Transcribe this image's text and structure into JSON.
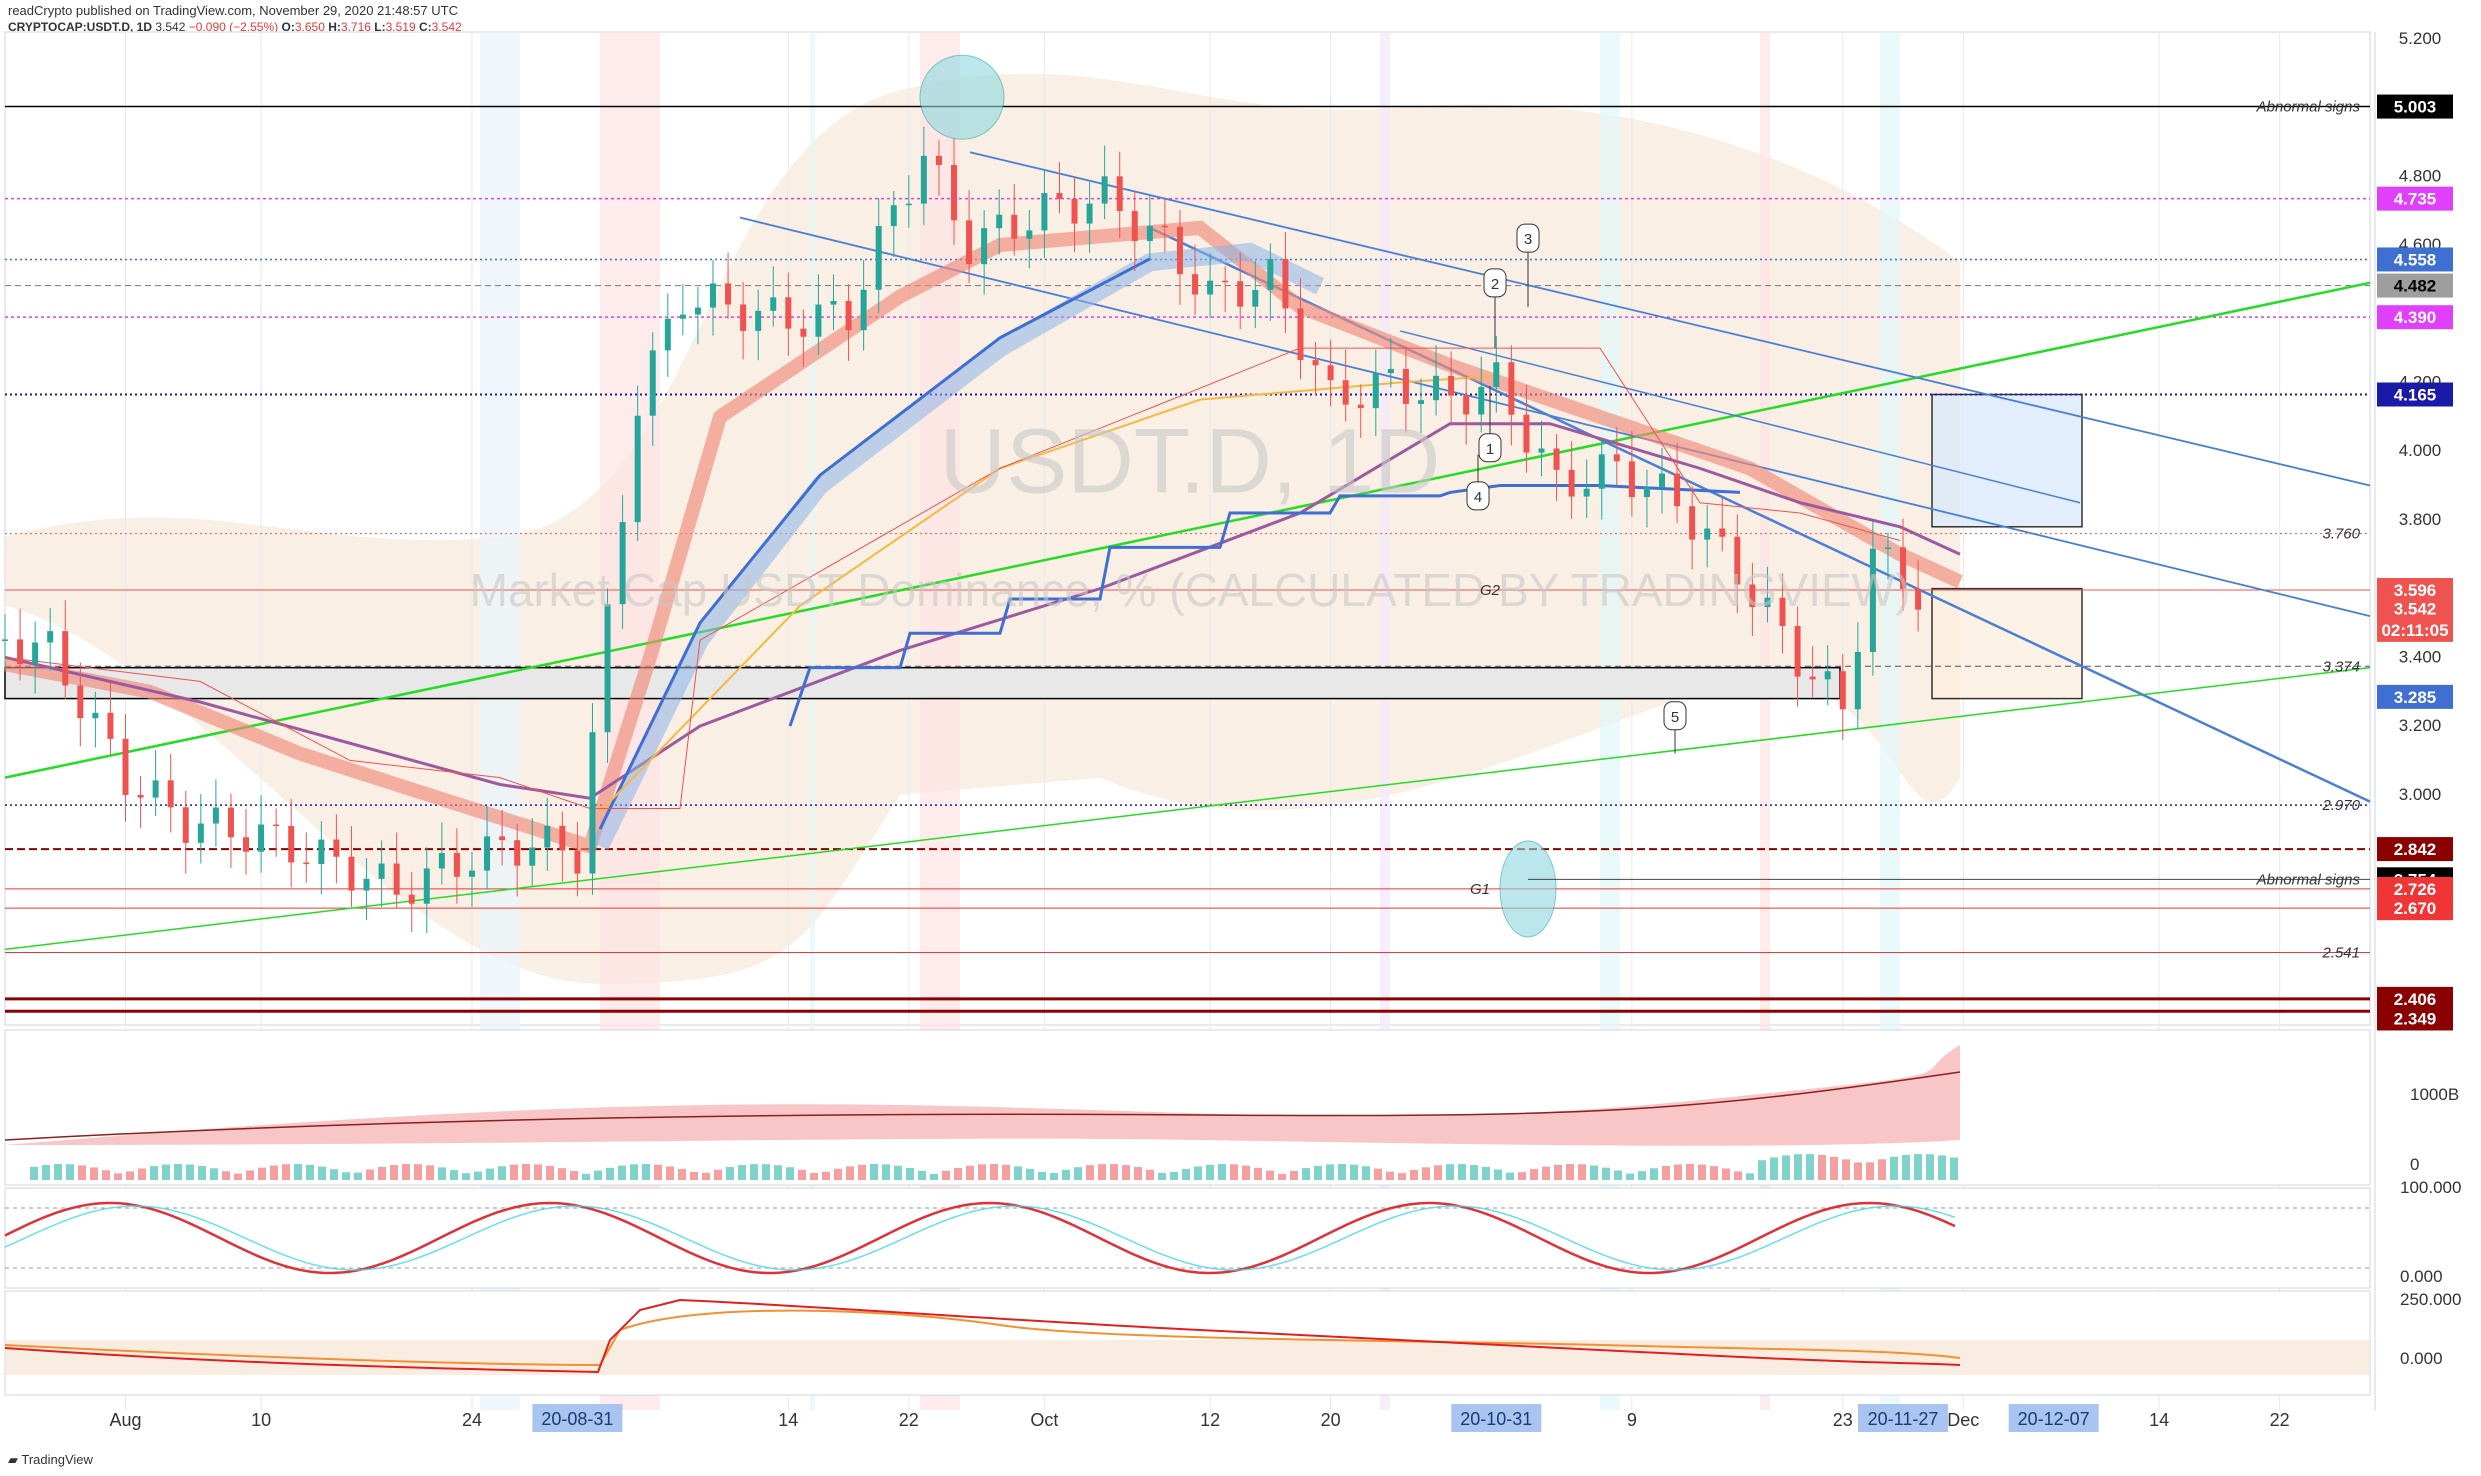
{
  "header": {
    "publisher_line": "readCrypto published on TradingView.com, November 29, 2020 21:48:57 UTC",
    "symbol": "CRYPTOCAP:USDT.D, 1D",
    "last": "3.542",
    "change": "−0.090 (−2.55%)",
    "open": "3.650",
    "high": "3.716",
    "low": "3.519",
    "close": "3.542"
  },
  "watermark": {
    "symbol": "USDT.D, 1D",
    "name": "Market Cap USDT Dominance, % (CALCULATED BY TRADINGVIEW)"
  },
  "footer_logo": "TradingView",
  "colors": {
    "up": "#26a69a",
    "down": "#ef5350",
    "green_line": "#22dd22",
    "blue_line": "#4a7fd6",
    "magenta": "#e040e0",
    "dark_red": "#8b0000",
    "purple": "#9c5aa0",
    "orange": "#f5b942"
  },
  "price_axis": {
    "ticks": [
      "5.200",
      "4.800",
      "4.600",
      "4.200",
      "4.000",
      "3.800",
      "3.600",
      "3.400",
      "3.200",
      "3.000"
    ],
    "labels": [
      {
        "value": 5.003,
        "text": "5.003",
        "bg": "#000000",
        "fg": "#ffffff"
      },
      {
        "value": 4.735,
        "text": "4.735",
        "bg": "#e040fb",
        "fg": "#ffffff"
      },
      {
        "value": 4.558,
        "text": "4.558",
        "bg": "#3f6fd1",
        "fg": "#ffffff"
      },
      {
        "value": 4.482,
        "text": "4.482",
        "bg": "#9e9e9e",
        "fg": "#000000"
      },
      {
        "value": 4.39,
        "text": "4.390",
        "bg": "#e040fb",
        "fg": "#ffffff"
      },
      {
        "value": 4.165,
        "text": "4.165",
        "bg": "#1a1aa8",
        "fg": "#ffffff"
      },
      {
        "value": 3.596,
        "text": "3.596",
        "bg": "#ef5350",
        "fg": "#ffffff"
      },
      {
        "value": 3.542,
        "text": "3.542",
        "bg": "#ef5350",
        "fg": "#ffffff"
      },
      {
        "value": 3.48,
        "text": "02:11:05",
        "bg": "#ef5350",
        "fg": "#ffffff"
      },
      {
        "value": 3.285,
        "text": "3.285",
        "bg": "#3f6fd1",
        "fg": "#ffffff"
      },
      {
        "value": 2.842,
        "text": "2.842",
        "bg": "#8b0000",
        "fg": "#ffffff"
      },
      {
        "value": 2.754,
        "text": "2.754",
        "bg": "#000000",
        "fg": "#ffffff"
      },
      {
        "value": 2.726,
        "text": "2.726",
        "bg": "#ef3535",
        "fg": "#ffffff"
      },
      {
        "value": 2.67,
        "text": "2.670",
        "bg": "#ef3535",
        "fg": "#ffffff"
      },
      {
        "value": 2.406,
        "text": "2.406",
        "bg": "#8b0000",
        "fg": "#ffffff"
      },
      {
        "value": 2.349,
        "text": "2.349",
        "bg": "#8b0000",
        "fg": "#ffffff"
      }
    ]
  },
  "time_axis": {
    "ticks": [
      "Aug",
      "10",
      "24",
      "14",
      "22",
      "Oct",
      "12",
      "20",
      "9",
      "23",
      "Dec",
      "14",
      "22"
    ],
    "highlights": [
      "20-08-31",
      "20-10-31",
      "20-11-27",
      "20-12-07"
    ]
  },
  "annotations": {
    "abnormal_top": "Abnormal signs",
    "abnormal_bottom": "Abnormal signs",
    "level_3760": "3.760",
    "level_3374": "3.374",
    "level_2970": "2.970",
    "level_2541": "2.541",
    "g1": "G1",
    "g2": "G2",
    "callouts": [
      "1",
      "2",
      "3",
      "4",
      "5"
    ]
  },
  "pane_volume": {
    "axis": [
      "1000B",
      "0"
    ]
  },
  "pane_stoch": {
    "axis": [
      "100.000",
      "0.000"
    ]
  },
  "pane_osc": {
    "axis": [
      "250.000",
      "0.000"
    ]
  },
  "chart_data": {
    "type": "candlestick",
    "title": "CRYPTOCAP:USDT.D, 1D",
    "x_range": [
      "2020-07-24",
      "2020-12-28"
    ],
    "ylim": [
      2.33,
      5.22
    ],
    "y_scale": "linear",
    "legend": "none",
    "close_series_approx": [
      {
        "date": "2020-07-24",
        "close": 3.45
      },
      {
        "date": "2020-07-27",
        "close": 3.42
      },
      {
        "date": "2020-08-01",
        "close": 3.05
      },
      {
        "date": "2020-08-05",
        "close": 2.92
      },
      {
        "date": "2020-08-10",
        "close": 2.88
      },
      {
        "date": "2020-08-15",
        "close": 2.8
      },
      {
        "date": "2020-08-19",
        "close": 2.72
      },
      {
        "date": "2020-08-24",
        "close": 2.82
      },
      {
        "date": "2020-08-28",
        "close": 2.86
      },
      {
        "date": "2020-08-31",
        "close": 2.83
      },
      {
        "date": "2020-09-02",
        "close": 3.5
      },
      {
        "date": "2020-09-04",
        "close": 4.15
      },
      {
        "date": "2020-09-07",
        "close": 4.45
      },
      {
        "date": "2020-09-10",
        "close": 4.42
      },
      {
        "date": "2020-09-14",
        "close": 4.38
      },
      {
        "date": "2020-09-18",
        "close": 4.4
      },
      {
        "date": "2020-09-21",
        "close": 4.7
      },
      {
        "date": "2020-09-23",
        "close": 4.86
      },
      {
        "date": "2020-09-26",
        "close": 4.6
      },
      {
        "date": "2020-10-01",
        "close": 4.7
      },
      {
        "date": "2020-10-05",
        "close": 4.74
      },
      {
        "date": "2020-10-09",
        "close": 4.6
      },
      {
        "date": "2020-10-12",
        "close": 4.45
      },
      {
        "date": "2020-10-16",
        "close": 4.5
      },
      {
        "date": "2020-10-20",
        "close": 4.15
      },
      {
        "date": "2020-10-24",
        "close": 4.2
      },
      {
        "date": "2020-10-28",
        "close": 4.15
      },
      {
        "date": "2020-10-31",
        "close": 4.2
      },
      {
        "date": "2020-11-04",
        "close": 3.9
      },
      {
        "date": "2020-11-08",
        "close": 3.95
      },
      {
        "date": "2020-11-12",
        "close": 3.85
      },
      {
        "date": "2020-11-16",
        "close": 3.65
      },
      {
        "date": "2020-11-20",
        "close": 3.4
      },
      {
        "date": "2020-11-23",
        "close": 3.25
      },
      {
        "date": "2020-11-25",
        "close": 3.7
      },
      {
        "date": "2020-11-27",
        "close": 3.63
      },
      {
        "date": "2020-11-29",
        "close": 3.542
      }
    ]
  }
}
